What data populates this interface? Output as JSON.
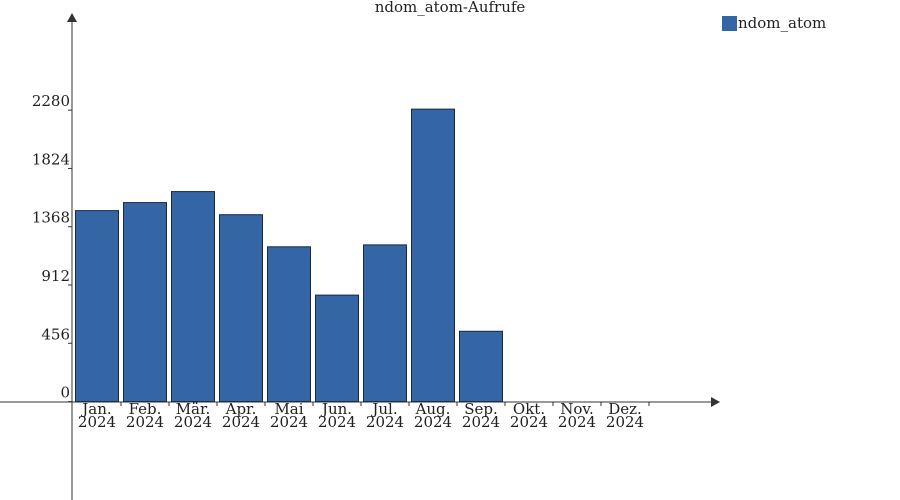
{
  "chart_data": {
    "type": "bar",
    "title": "ndom_atom-Aufrufe",
    "categories": [
      "Jan. 2024",
      "Feb. 2024",
      "Mär. 2024",
      "Apr. 2024",
      "Mai 2024",
      "Jun. 2024",
      "Jul. 2024",
      "Aug. 2024",
      "Sep. 2024",
      "Okt. 2024",
      "Nov. 2024",
      "Dez. 2024"
    ],
    "series": [
      {
        "name": "ndom_atom",
        "color": "#3465a4",
        "values": [
          1494,
          1557,
          1643,
          1462,
          1211,
          833,
          1226,
          2288,
          550,
          0,
          0,
          0
        ]
      }
    ],
    "ylim": [
      -770,
      3040
    ],
    "yticks": [
      0,
      456,
      912,
      1368,
      1824,
      2280
    ],
    "legend": "top-right"
  }
}
